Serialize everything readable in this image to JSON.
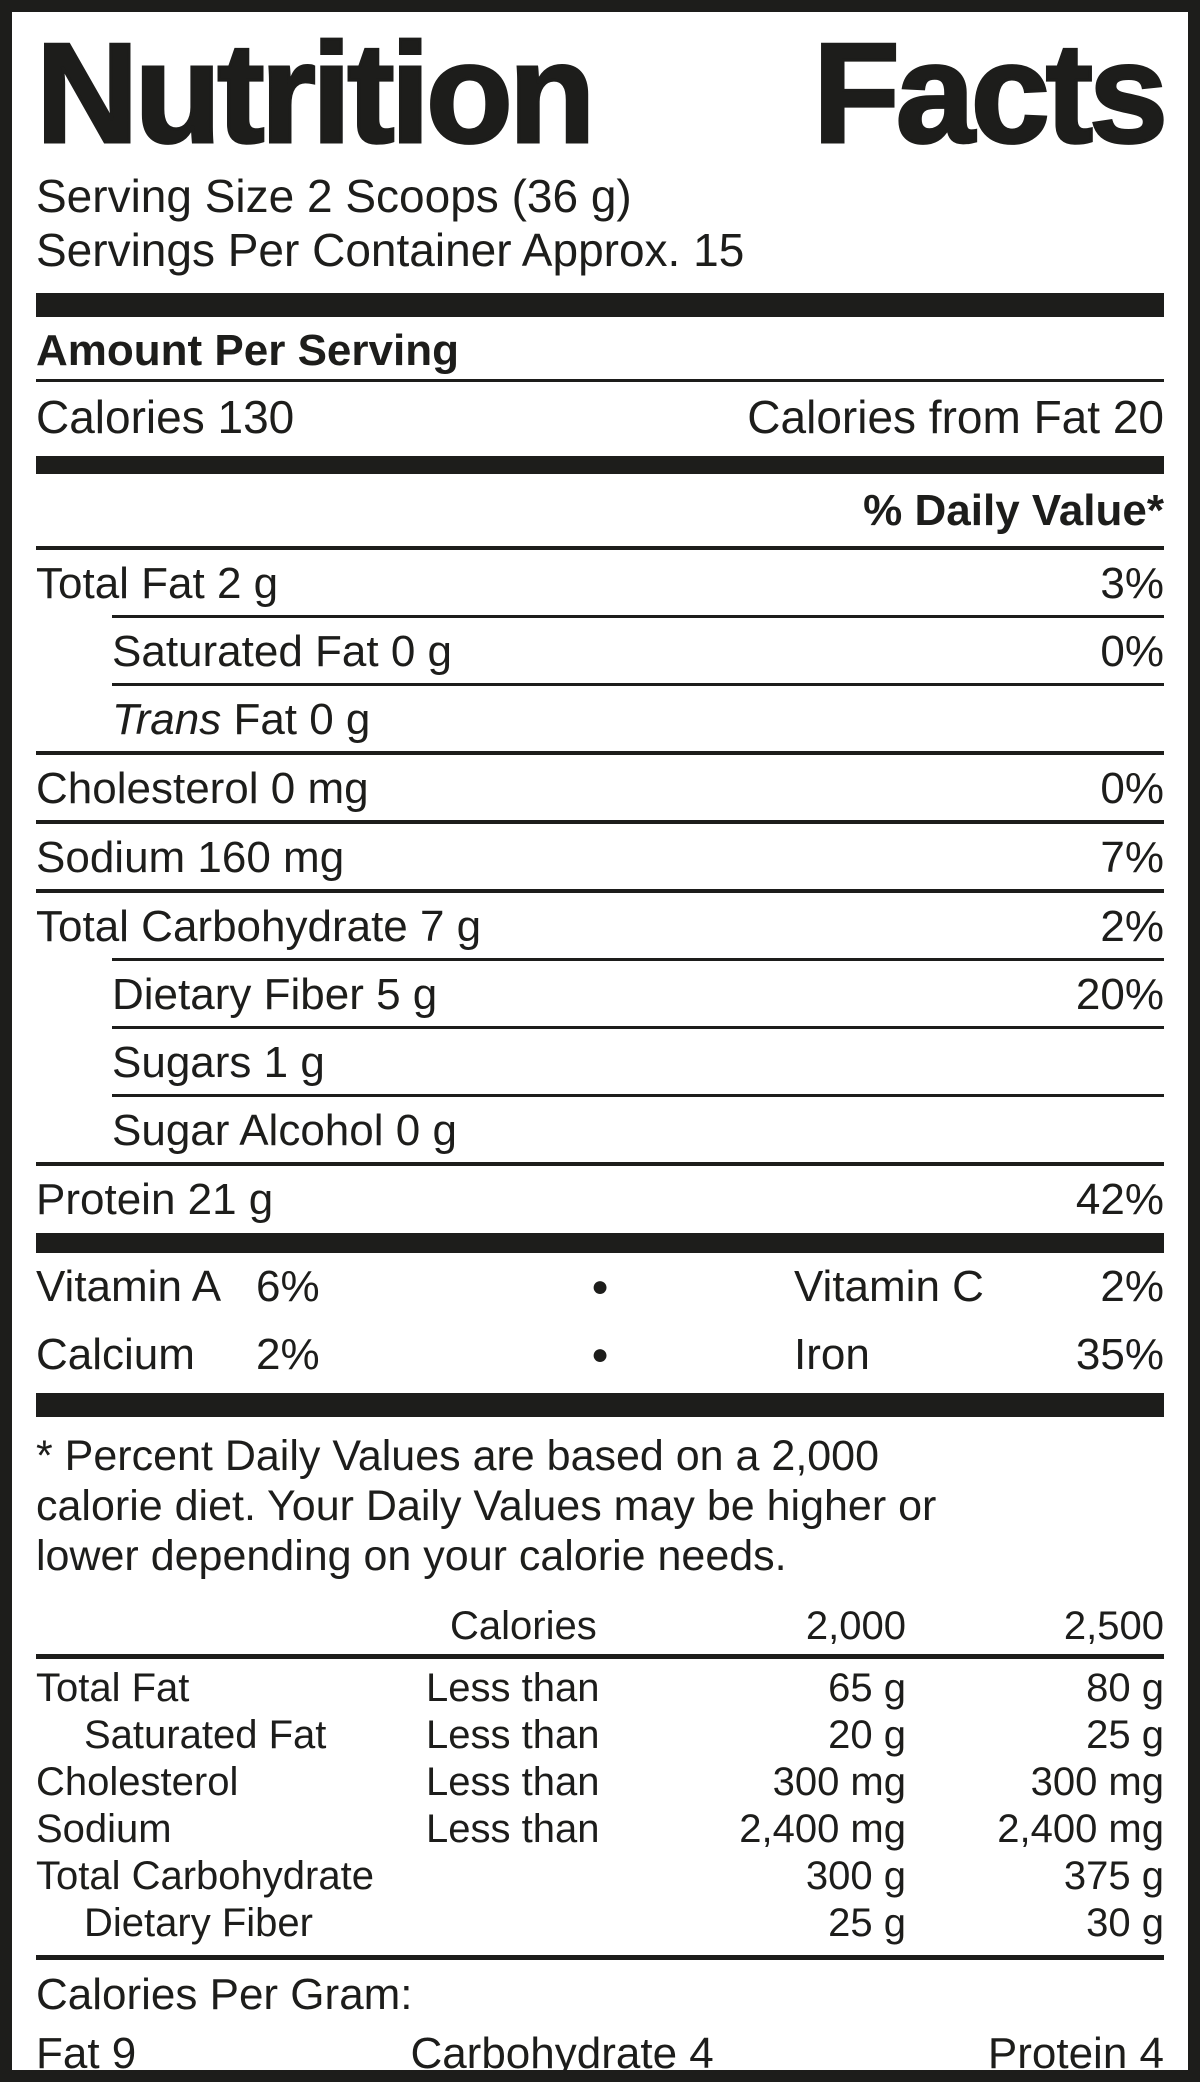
{
  "colors": {
    "ink": "#1d1d1b",
    "background": "#ffffff"
  },
  "title": {
    "word1": "Nutrition",
    "word2": "Facts"
  },
  "serving": {
    "size_line": "Serving Size 2 Scoops (36 g)",
    "per_container_line": "Servings Per Container Approx. 15"
  },
  "sections": {
    "amount_per_serving": "Amount Per Serving",
    "daily_value_header": "% Daily Value*"
  },
  "calories": {
    "left": "Calories 130",
    "right": "Calories from Fat 20"
  },
  "nutrients": [
    {
      "name": "Total Fat 2 g",
      "dv": "3%"
    },
    {
      "name": "Saturated Fat 0 g",
      "dv": "0%"
    },
    {
      "name_italic": "Trans",
      "name_rest": " Fat 0 g",
      "dv": ""
    },
    {
      "name": "Cholesterol 0 mg",
      "dv": "0%"
    },
    {
      "name": "Sodium 160 mg",
      "dv": "7%"
    },
    {
      "name": "Total Carbohydrate 7 g",
      "dv": "2%"
    },
    {
      "name": "Dietary Fiber 5 g",
      "dv": "20%"
    },
    {
      "name": "Sugars 1 g",
      "dv": ""
    },
    {
      "name": "Sugar Alcohol 0 g",
      "dv": ""
    },
    {
      "name": "Protein 21 g",
      "dv": "42%"
    }
  ],
  "vitamins": {
    "bullet": "●",
    "rows": [
      {
        "left_name": "Vitamin A",
        "left_value": "6%",
        "right_name": "Vitamin C",
        "right_value": "2%"
      },
      {
        "left_name": "Calcium",
        "left_value": "2%",
        "right_name": "Iron",
        "right_value": "35%"
      }
    ]
  },
  "footnote": {
    "lines": [
      "* Percent Daily Values are based on a 2,000",
      "calorie diet. Your Daily Values may be higher or",
      "lower depending on your calorie needs."
    ]
  },
  "reference_table": {
    "header": {
      "col2": "Calories",
      "col3": "2,000",
      "col4": "2,500"
    },
    "rows": [
      {
        "name": "Total Fat",
        "qualifier": "Less than",
        "v2000": "65 g",
        "v2500": "80 g"
      },
      {
        "name": "Saturated Fat",
        "qualifier": "Less than",
        "v2000": "20 g",
        "v2500": "25 g"
      },
      {
        "name": "Cholesterol",
        "qualifier": "Less than",
        "v2000": "300 mg",
        "v2500": "300 mg"
      },
      {
        "name": "Sodium",
        "qualifier": "Less than",
        "v2000": "2,400 mg",
        "v2500": "2,400 mg"
      },
      {
        "name": "Total Carbohydrate",
        "qualifier": "",
        "v2000": "300 g",
        "v2500": "375 g"
      },
      {
        "name": "Dietary Fiber",
        "qualifier": "",
        "v2000": "25 g",
        "v2500": "30 g"
      }
    ]
  },
  "calories_per_gram": {
    "heading": "Calories Per Gram:",
    "items": [
      "Fat 9",
      "Carbohydrate 4",
      "Protein 4"
    ]
  }
}
